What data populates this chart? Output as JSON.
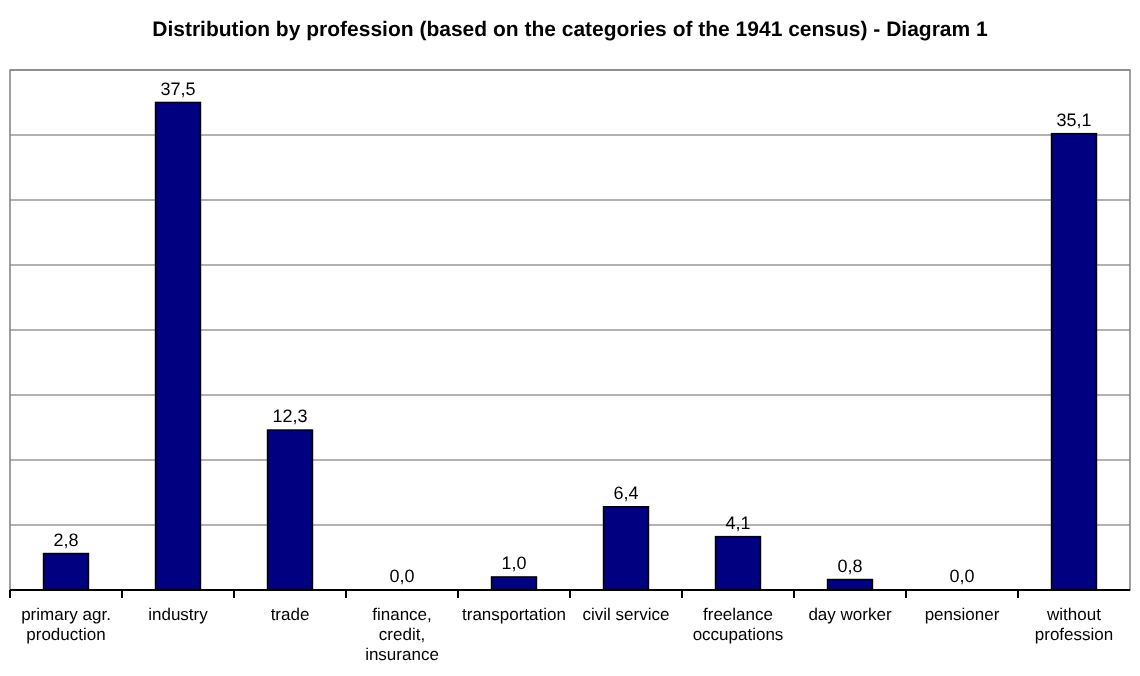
{
  "chart_data": {
    "type": "bar",
    "title": "Distribution by profession (based on the categories of the 1941 census) - Diagram 1",
    "categories": [
      "primary agr. production",
      "industry",
      "trade",
      "finance, credit, insurance",
      "transportation",
      "civil service",
      "freelance occupations",
      "day worker",
      "pensioner",
      "without profession"
    ],
    "values": [
      2.8,
      37.5,
      12.3,
      0.0,
      1.0,
      6.4,
      4.1,
      0.8,
      0.0,
      35.1
    ],
    "value_labels": [
      "2,8",
      "37,5",
      "12,3",
      "0,0",
      "1,0",
      "6,4",
      "4,1",
      "0,8",
      "0,0",
      "35,1"
    ],
    "color": "#000080",
    "ylim": [
      0,
      40
    ],
    "yticks": [
      {
        "value": 0,
        "label": null
      },
      {
        "value": 5,
        "label": null
      },
      {
        "value": 10,
        "label": null
      },
      {
        "value": 15,
        "label": null
      },
      {
        "value": 20,
        "label": null
      },
      {
        "value": 25,
        "label": null
      },
      {
        "value": 30,
        "label": null
      },
      {
        "value": 35,
        "label": null
      },
      {
        "value": 40,
        "label": null
      }
    ],
    "grid": "y",
    "tick_labels": "x"
  }
}
